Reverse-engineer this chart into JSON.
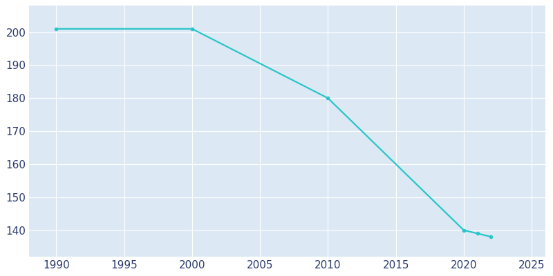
{
  "years": [
    1990,
    2000,
    2010,
    2020,
    2021,
    2022
  ],
  "population": [
    201,
    201,
    180,
    140,
    139,
    138
  ],
  "line_color": "#29c5c8",
  "marker": "o",
  "marker_size": 3,
  "line_width": 1.6,
  "figure_bg_color": "#ffffff",
  "plot_bg_color": "#dce9f5",
  "grid_color": "#ffffff",
  "tick_label_color": "#2b3a6e",
  "xlim": [
    1988,
    2026
  ],
  "ylim": [
    132,
    208
  ],
  "xticks": [
    1990,
    1995,
    2000,
    2005,
    2010,
    2015,
    2020,
    2025
  ],
  "yticks": [
    140,
    150,
    160,
    170,
    180,
    190,
    200
  ],
  "tick_fontsize": 11,
  "figsize": [
    8.0,
    4.0
  ],
  "dpi": 100
}
